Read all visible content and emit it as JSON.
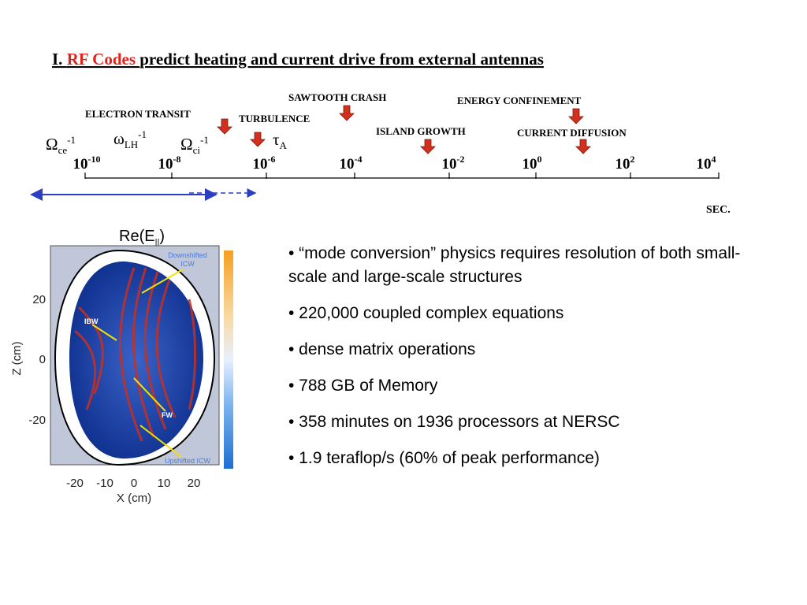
{
  "title": {
    "number": "I.",
    "highlight": "RF Codes",
    "rest": "predict heating and current drive from external antennas"
  },
  "timeline": {
    "ticks": [
      {
        "base": "10",
        "exp": "-10"
      },
      {
        "base": "10",
        "exp": "-8"
      },
      {
        "base": "10",
        "exp": "-6"
      },
      {
        "base": "10",
        "exp": "-4"
      },
      {
        "base": "10",
        "exp": "-2"
      },
      {
        "base": "10",
        "exp": "0"
      },
      {
        "base": "10",
        "exp": "2"
      },
      {
        "base": "10",
        "exp": "4"
      }
    ],
    "events": [
      "SAWTOOTH CRASH",
      "ENERGY CONFINEMENT",
      "ELECTRON TRANSIT",
      "TURBULENCE",
      "ISLAND GROWTH",
      "CURRENT DIFFUSION"
    ],
    "frequencies": [
      {
        "symbol": "Ω",
        "sub": "ce",
        "sup": "-1"
      },
      {
        "symbol": "ω",
        "sub": "LH",
        "sup": "-1"
      },
      {
        "symbol": "Ω",
        "sub": "ci",
        "sup": "-1"
      },
      {
        "symbol": "τ",
        "sub": "A"
      }
    ],
    "unit": "SEC."
  },
  "figure": {
    "title": {
      "main": "Re(E",
      "sub": "||",
      "end": ")"
    },
    "labels": {
      "downshifted": [
        "Downshifted",
        "ICW"
      ],
      "ibw": "IBW",
      "fw": "FW",
      "upshifted": "Upshifted ICW"
    },
    "y_axis": {
      "label": "Z (cm)",
      "ticks": [
        "20",
        "0",
        "-20"
      ]
    },
    "x_axis": {
      "label": "X (cm)",
      "ticks": [
        "-20",
        "-10",
        "0",
        "10",
        "20"
      ]
    }
  },
  "bullets": [
    "• “mode conversion” physics requires resolution of both small-scale and large-scale structures",
    "• 220,000 coupled complex equations",
    "• dense matrix operations",
    "• 788 GB of Memory",
    "• 358 minutes on 1936 processors at NERSC",
    "• 1.9 teraflop/s (60% of peak performance)"
  ]
}
